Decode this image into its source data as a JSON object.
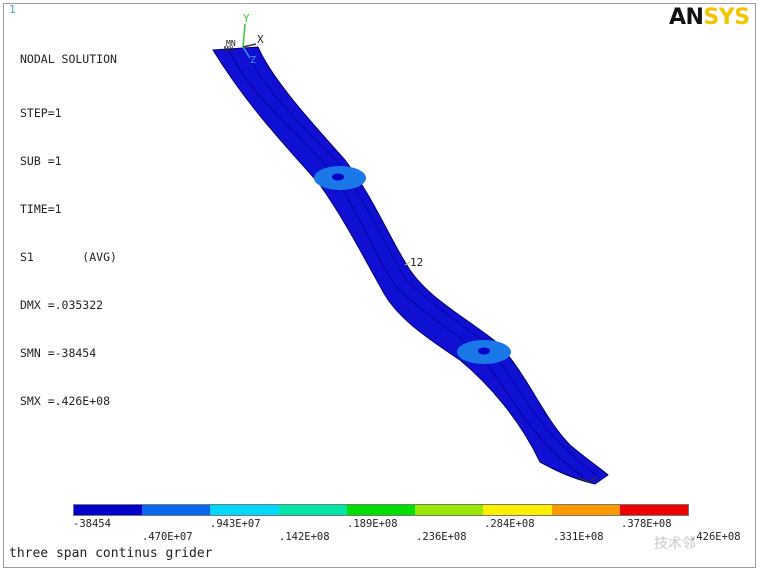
{
  "window_number": "1",
  "info": {
    "title": "NODAL SOLUTION",
    "lines": [
      "STEP=1",
      "SUB =1",
      "TIME=1",
      "S1       (AVG)",
      "DMX =.035322",
      "SMN =-38454",
      "SMX =.426E+08"
    ]
  },
  "logo": {
    "part1": "AN",
    "part2": "SYS"
  },
  "triad": {
    "y": "Y",
    "x": "X",
    "z": "Z",
    "mn": "MN",
    "mx": "MX"
  },
  "node_label": "12",
  "legend": {
    "colors": [
      "#0000cc",
      "#0a66ee",
      "#00d8ff",
      "#00e6a8",
      "#00dd00",
      "#99e600",
      "#ffee00",
      "#ff9900",
      "#ee0000"
    ],
    "labels_top": [
      "-38454",
      ".943E+07",
      ".189E+08",
      ".284E+08",
      ".378E+08"
    ],
    "labels_bottom": [
      ".470E+07",
      ".142E+08",
      ".236E+08",
      ".331E+08",
      ".426E+08"
    ]
  },
  "caption": "three span continus grider",
  "watermark": "技术邻"
}
